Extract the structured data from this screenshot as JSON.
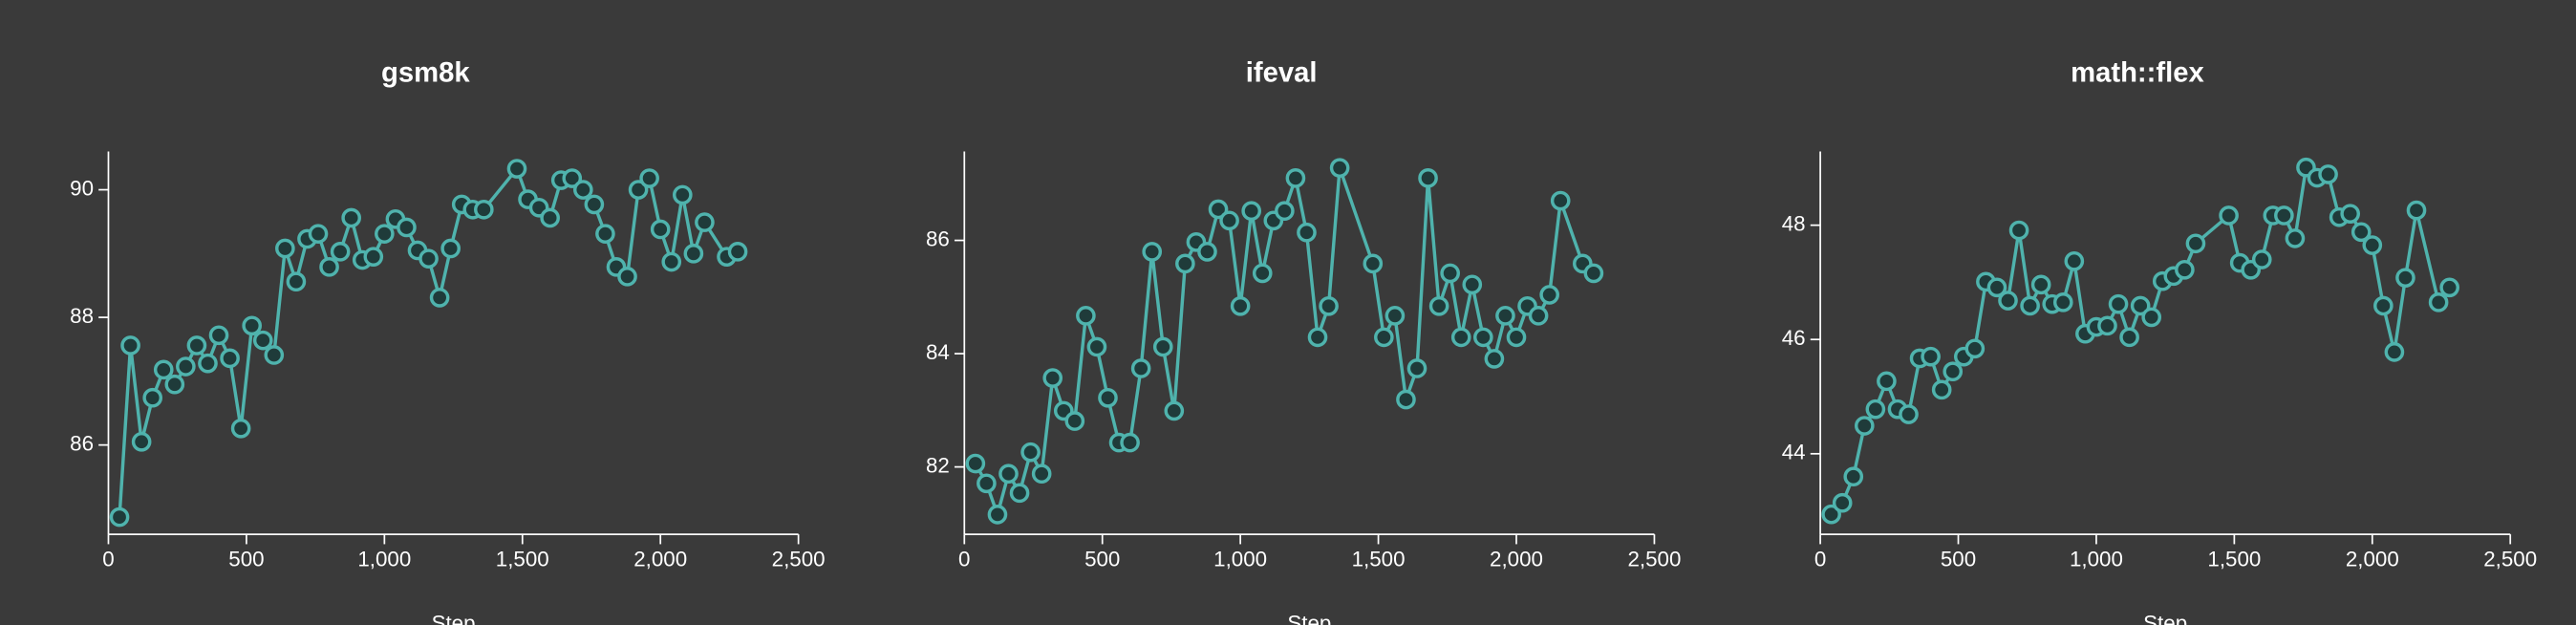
{
  "chart_data": [
    {
      "type": "line",
      "title": "gsm8k",
      "x_label": "Step",
      "color": "#4fb3ad",
      "x": [
        40,
        80,
        120,
        160,
        200,
        240,
        280,
        320,
        360,
        400,
        440,
        480,
        520,
        560,
        600,
        640,
        680,
        720,
        760,
        800,
        840,
        880,
        920,
        960,
        1000,
        1040,
        1080,
        1120,
        1160,
        1200,
        1240,
        1280,
        1320,
        1360,
        1480,
        1520,
        1560,
        1600,
        1640,
        1680,
        1720,
        1760,
        1800,
        1840,
        1880,
        1920,
        1960,
        2000,
        2040,
        2080,
        2120,
        2160,
        2240,
        2280
      ],
      "values": [
        84.87,
        87.56,
        86.05,
        86.74,
        87.18,
        86.95,
        87.23,
        87.56,
        87.28,
        87.72,
        87.36,
        86.26,
        87.87,
        87.64,
        87.41,
        89.08,
        88.56,
        89.23,
        89.31,
        88.79,
        89.03,
        89.56,
        88.9,
        88.95,
        89.31,
        89.54,
        89.41,
        89.05,
        88.92,
        88.31,
        89.08,
        89.77,
        89.69,
        89.69,
        90.33,
        89.85,
        89.72,
        89.56,
        90.15,
        90.18,
        90.0,
        89.77,
        89.31,
        88.79,
        88.64,
        90.0,
        90.18,
        89.38,
        88.87,
        89.92,
        89.0,
        89.49,
        88.95,
        89.03
      ],
      "xlim": [
        0,
        2500
      ],
      "xticks": [
        0,
        500,
        {
          "value": 1000,
          "label": "1,000"
        },
        {
          "value": 1500,
          "label": "1,500"
        },
        {
          "value": 2000,
          "label": "2,000"
        },
        {
          "value": 2500,
          "label": "2,500"
        }
      ],
      "ylim": [
        84.6,
        90.6
      ],
      "yticks": [
        86,
        88,
        90
      ]
    },
    {
      "type": "line",
      "title": "ifeval",
      "x_label": "Step",
      "color": "#4fb3ad",
      "x": [
        40,
        80,
        120,
        160,
        200,
        240,
        280,
        320,
        360,
        400,
        440,
        480,
        520,
        560,
        600,
        640,
        680,
        720,
        760,
        800,
        840,
        880,
        920,
        960,
        1000,
        1040,
        1080,
        1120,
        1160,
        1200,
        1240,
        1280,
        1320,
        1360,
        1480,
        1520,
        1560,
        1600,
        1640,
        1680,
        1720,
        1760,
        1800,
        1840,
        1880,
        1920,
        1960,
        2000,
        2040,
        2080,
        2120,
        2160,
        2240,
        2280
      ],
      "values": [
        82.06,
        81.71,
        81.16,
        81.88,
        81.54,
        82.26,
        81.88,
        83.57,
        82.99,
        82.81,
        84.67,
        84.12,
        83.22,
        82.43,
        82.43,
        83.74,
        85.8,
        84.12,
        82.99,
        85.59,
        85.97,
        85.8,
        86.55,
        86.35,
        84.84,
        86.52,
        85.42,
        86.35,
        86.52,
        87.1,
        86.14,
        84.29,
        84.84,
        87.28,
        85.59,
        84.29,
        84.67,
        83.19,
        83.74,
        87.1,
        84.84,
        85.42,
        84.29,
        85.22,
        84.29,
        83.91,
        84.67,
        84.29,
        84.84,
        84.67,
        85.04,
        86.7,
        85.59,
        85.42
      ],
      "xlim": [
        0,
        2500
      ],
      "xticks": [
        0,
        500,
        {
          "value": 1000,
          "label": "1,000"
        },
        {
          "value": 1500,
          "label": "1,500"
        },
        {
          "value": 2000,
          "label": "2,000"
        },
        {
          "value": 2500,
          "label": "2,500"
        }
      ],
      "ylim": [
        80.81,
        87.57
      ],
      "yticks": [
        82,
        84,
        86
      ]
    },
    {
      "type": "line",
      "title": "math::flex",
      "x_label": "Step",
      "color": "#4fb3ad",
      "x": [
        40,
        80,
        120,
        160,
        200,
        240,
        280,
        320,
        360,
        400,
        440,
        480,
        520,
        560,
        600,
        640,
        680,
        720,
        760,
        800,
        840,
        880,
        920,
        960,
        1000,
        1040,
        1080,
        1120,
        1160,
        1200,
        1240,
        1280,
        1320,
        1360,
        1480,
        1520,
        1560,
        1600,
        1640,
        1680,
        1720,
        1760,
        1800,
        1840,
        1880,
        1920,
        1960,
        2000,
        2040,
        2080,
        2120,
        2160,
        2240,
        2280
      ],
      "values": [
        42.94,
        43.14,
        43.6,
        44.49,
        44.78,
        45.27,
        44.78,
        44.69,
        45.67,
        45.7,
        45.12,
        45.44,
        45.7,
        45.84,
        47.01,
        46.91,
        46.68,
        47.91,
        46.59,
        46.96,
        46.62,
        46.65,
        47.37,
        46.1,
        46.22,
        46.24,
        46.62,
        46.04,
        46.59,
        46.39,
        47.02,
        47.11,
        47.22,
        47.68,
        48.17,
        47.34,
        47.22,
        47.4,
        48.17,
        48.17,
        47.77,
        49.01,
        48.83,
        48.89,
        48.14,
        48.2,
        47.88,
        47.65,
        46.59,
        45.78,
        47.08,
        48.26,
        46.65,
        46.91
      ],
      "xlim": [
        0,
        2500
      ],
      "xticks": [
        0,
        500,
        {
          "value": 1000,
          "label": "1,000"
        },
        {
          "value": 1500,
          "label": "1,500"
        },
        {
          "value": 2000,
          "label": "2,000"
        },
        {
          "value": 2500,
          "label": "2,500"
        }
      ],
      "ylim": [
        42.59,
        49.29
      ],
      "yticks": [
        44,
        46,
        48
      ]
    }
  ]
}
